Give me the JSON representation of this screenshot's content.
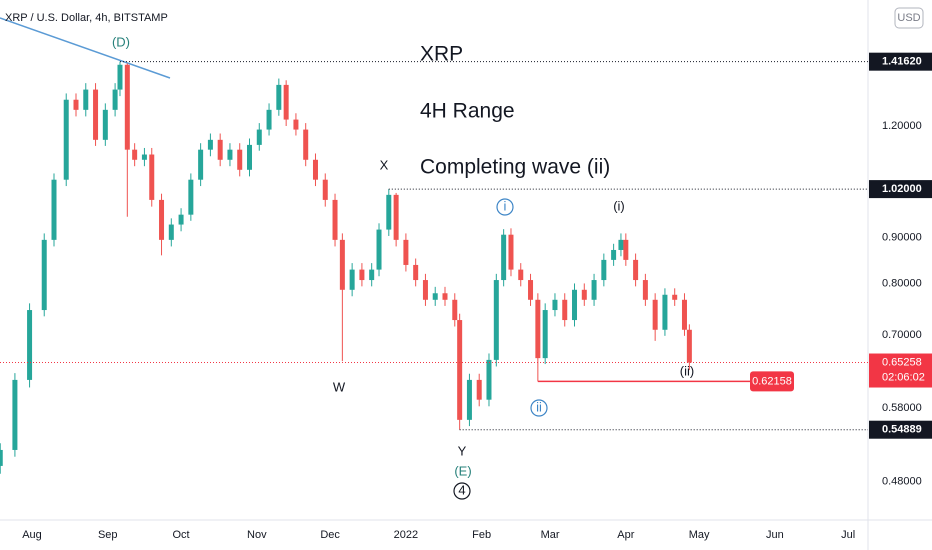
{
  "chart_data": {
    "type": "candlestick",
    "title": "XRP / U.S. Dollar, 4h, BITSTAMP",
    "currency": "USD",
    "annotations": [
      "XRP",
      "4H Range",
      "Completing wave (ii)"
    ],
    "wave_labels": [
      "(D)",
      "X",
      "W",
      "Y",
      "(E)",
      "4",
      "i",
      "ii",
      "(i)",
      "(ii)"
    ],
    "countdown": "02:06:02",
    "up_color": "#26a69a",
    "down_color": "#ef5350",
    "log_scale": true,
    "grid": false,
    "x": [
      -13,
      -7,
      -1,
      5,
      9,
      14,
      18,
      22,
      26,
      30,
      34,
      36,
      39,
      42,
      46,
      49,
      53,
      57,
      61,
      65,
      69,
      73,
      77,
      81,
      85,
      89,
      93,
      97,
      101,
      104,
      108,
      112,
      116,
      120,
      124,
      127,
      131,
      135,
      139,
      142,
      146,
      149,
      153,
      157,
      161,
      165,
      169,
      173,
      175,
      179,
      183,
      187,
      190,
      193,
      196,
      200,
      204,
      207,
      210,
      214,
      218,
      222,
      226,
      230,
      234,
      238,
      241,
      243,
      247,
      251,
      255,
      259,
      263,
      267,
      269
    ],
    "open": [
      0.5,
      0.521,
      0.624,
      0.747,
      0.895,
      1.045,
      1.284,
      1.251,
      1.318,
      1.158,
      1.251,
      1.318,
      1.405,
      1.129,
      1.1,
      1.115,
      0.992,
      0.895,
      0.931,
      0.955,
      1.045,
      1.129,
      1.158,
      1.1,
      1.129,
      1.072,
      1.143,
      1.189,
      1.251,
      1.334,
      1.22,
      1.189,
      1.1,
      1.045,
      0.992,
      0.895,
      0.787,
      0.829,
      0.807,
      0.829,
      0.919,
      1.005,
      0.895,
      0.839,
      0.807,
      0.767,
      0.78,
      0.767,
      0.728,
      0.563,
      0.624,
      0.593,
      0.657,
      0.807,
      0.907,
      0.829,
      0.807,
      0.767,
      0.66,
      0.747,
      0.767,
      0.728,
      0.787,
      0.767,
      0.807,
      0.85,
      0.872,
      0.895,
      0.85,
      0.807,
      0.767,
      0.71,
      0.777,
      0.767,
      0.71
    ],
    "high": [
      0.53,
      0.635,
      0.76,
      0.91,
      1.062,
      1.305,
      1.305,
      1.34,
      1.34,
      1.272,
      1.34,
      1.4162,
      1.41,
      1.148,
      1.134,
      1.134,
      1.008,
      0.946,
      0.971,
      1.062,
      1.148,
      1.177,
      1.177,
      1.148,
      1.148,
      1.162,
      1.209,
      1.272,
      1.356,
      1.35,
      1.24,
      1.209,
      1.118,
      1.062,
      1.008,
      0.91,
      0.843,
      0.843,
      0.843,
      0.934,
      1.02,
      1.01,
      0.91,
      0.853,
      0.82,
      0.793,
      0.793,
      0.78,
      0.74,
      0.634,
      0.634,
      0.668,
      0.82,
      0.92,
      0.922,
      0.843,
      0.82,
      0.78,
      0.76,
      0.78,
      0.78,
      0.8,
      0.8,
      0.82,
      0.864,
      0.886,
      0.91,
      0.91,
      0.864,
      0.82,
      0.78,
      0.79,
      0.79,
      0.78,
      0.72
    ],
    "low": [
      0.49,
      0.512,
      0.612,
      0.735,
      0.88,
      1.028,
      1.23,
      1.23,
      1.14,
      1.14,
      1.23,
      1.296,
      0.95,
      1.082,
      1.082,
      0.975,
      0.86,
      0.88,
      0.915,
      0.94,
      1.028,
      1.11,
      1.082,
      1.082,
      1.054,
      1.054,
      1.126,
      1.171,
      1.232,
      1.2,
      1.171,
      1.082,
      1.028,
      0.975,
      0.88,
      0.655,
      0.774,
      0.794,
      0.794,
      0.815,
      0.904,
      0.88,
      0.825,
      0.794,
      0.755,
      0.755,
      0.755,
      0.716,
      0.54889,
      0.554,
      0.583,
      0.583,
      0.646,
      0.794,
      0.815,
      0.794,
      0.755,
      0.62158,
      0.65,
      0.735,
      0.716,
      0.716,
      0.755,
      0.755,
      0.794,
      0.837,
      0.858,
      0.837,
      0.794,
      0.755,
      0.69,
      0.699,
      0.755,
      0.699,
      0.64
    ],
    "close": [
      0.521,
      0.624,
      0.747,
      0.895,
      1.045,
      1.284,
      1.251,
      1.318,
      1.158,
      1.251,
      1.318,
      1.405,
      1.129,
      1.1,
      1.115,
      0.992,
      0.895,
      0.931,
      0.955,
      1.045,
      1.129,
      1.158,
      1.1,
      1.129,
      1.072,
      1.143,
      1.189,
      1.251,
      1.334,
      1.22,
      1.189,
      1.1,
      1.045,
      0.992,
      0.895,
      0.787,
      0.829,
      0.807,
      0.829,
      0.919,
      1.005,
      0.895,
      0.839,
      0.807,
      0.767,
      0.78,
      0.767,
      0.728,
      0.563,
      0.624,
      0.593,
      0.657,
      0.807,
      0.907,
      0.829,
      0.807,
      0.767,
      0.66,
      0.747,
      0.767,
      0.728,
      0.787,
      0.767,
      0.807,
      0.85,
      0.872,
      0.895,
      0.85,
      0.807,
      0.767,
      0.71,
      0.777,
      0.767,
      0.71,
      0.65258
    ],
    "xlim": [
      -13.1,
      342.1
    ],
    "xticks": [
      {
        "value": 0,
        "label": "Aug"
      },
      {
        "value": 31,
        "label": "Sep"
      },
      {
        "value": 61,
        "label": "Oct"
      },
      {
        "value": 92,
        "label": "Nov"
      },
      {
        "value": 122,
        "label": "Dec"
      },
      {
        "value": 153,
        "label": "2022"
      },
      {
        "value": 184,
        "label": "Feb"
      },
      {
        "value": 212,
        "label": "Mar"
      },
      {
        "value": 243,
        "label": "Apr"
      },
      {
        "value": 273,
        "label": "May"
      },
      {
        "value": 304,
        "label": "Jun"
      },
      {
        "value": 334,
        "label": "Jul"
      }
    ],
    "ylim": [
      0.435,
      1.66
    ],
    "yticks": [
      {
        "value": 1.2,
        "label": "1.20000"
      },
      {
        "value": 0.9,
        "label": "0.90000"
      },
      {
        "value": 0.8,
        "label": "0.80000"
      },
      {
        "value": 0.7,
        "label": "0.70000"
      },
      {
        "value": 0.58,
        "label": "0.58000"
      },
      {
        "value": 0.48,
        "label": "0.48000"
      }
    ],
    "price_lines": [
      {
        "value": 1.4162,
        "label": "1.41620"
      },
      {
        "value": 1.02,
        "label": "1.02000"
      },
      {
        "value": 0.65258,
        "label": "0.65258"
      },
      {
        "value": 0.54889,
        "label": "0.54889"
      },
      {
        "value": 0.62158,
        "label": "0.62158"
      }
    ]
  }
}
